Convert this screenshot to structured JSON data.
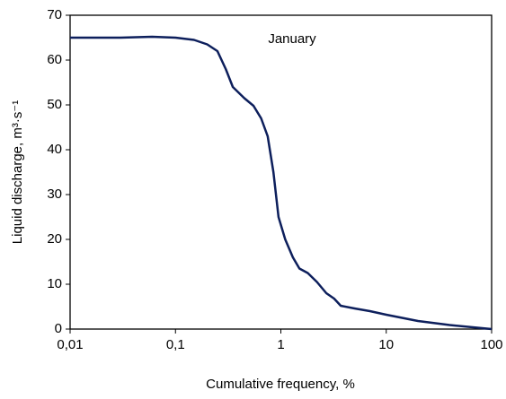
{
  "chart_data": {
    "type": "line",
    "annotation": "January",
    "x_label": "Cumulative frequency, %",
    "y_label": "Liquid discharge, m³·s⁻¹",
    "x_scale": "log",
    "xlim": [
      0.01,
      100
    ],
    "xticks": [
      {
        "value": 0.01,
        "label": "0,01"
      },
      {
        "value": 0.1,
        "label": "0,1"
      },
      1,
      10,
      100
    ],
    "ylim": [
      0,
      70
    ],
    "yticks": [
      0,
      10,
      20,
      30,
      40,
      50,
      60,
      70
    ],
    "series": [
      {
        "color": "#0d1f5c",
        "x": [
          0.01,
          0.03,
          0.06,
          0.1,
          0.15,
          0.2,
          0.25,
          0.3,
          0.35,
          0.45,
          0.55,
          0.65,
          0.75,
          0.85,
          0.95,
          1.1,
          1.3,
          1.5,
          1.8,
          2.2,
          2.7,
          3.2,
          3.7,
          5,
          7,
          10,
          20,
          40,
          100
        ],
        "values": [
          65,
          65,
          65.2,
          65,
          64.5,
          63.5,
          62,
          58,
          54,
          51.5,
          49.8,
          47,
          43,
          35,
          25,
          20,
          16,
          13.5,
          12.5,
          10.5,
          8,
          6.8,
          5.2,
          4.6,
          4,
          3.2,
          1.8,
          0.9,
          0
        ]
      }
    ]
  }
}
